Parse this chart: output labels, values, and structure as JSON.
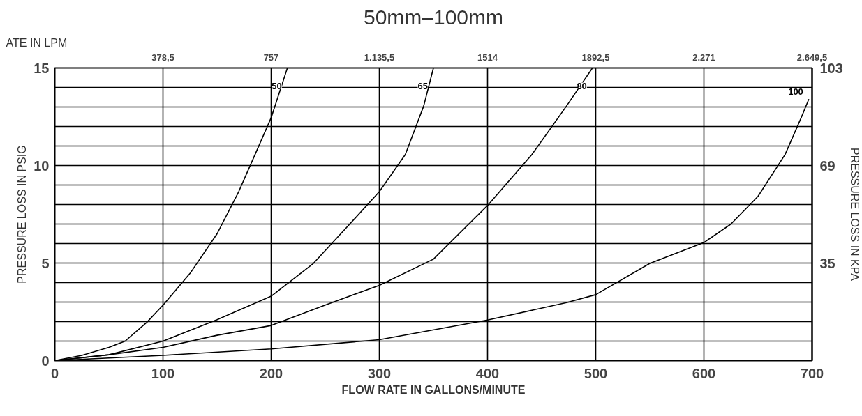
{
  "chart_data": {
    "type": "line",
    "title": "50mm–100mm",
    "xlabel": "FLOW RATE IN GALLONS/MINUTE",
    "ylabel": "PRESSURE LOSS IN PSIG",
    "y2label": "PRESSURE LOSS IN KPA",
    "x2label": "ATE IN LPM",
    "xlim": [
      0,
      700
    ],
    "xticks": [
      0,
      100,
      200,
      300,
      400,
      500,
      600,
      700
    ],
    "x2lim": [
      0,
      2649.5
    ],
    "x2ticks": [
      {
        "value": 378.5,
        "label": "378,5"
      },
      {
        "value": 757,
        "label": "757"
      },
      {
        "value": 1135.5,
        "label": "1.135,5"
      },
      {
        "value": 1514,
        "label": "1514"
      },
      {
        "value": 1892.5,
        "label": "1892,5"
      },
      {
        "value": 2271,
        "label": "2.271"
      },
      {
        "value": 2649.5,
        "label": "2.649,5"
      }
    ],
    "ylim": [
      0,
      15
    ],
    "yticks": [
      0,
      {
        "value": 1,
        "label": null
      },
      {
        "value": 2,
        "label": null
      },
      {
        "value": 3,
        "label": null
      },
      {
        "value": 4,
        "label": null
      },
      5,
      {
        "value": 6,
        "label": null
      },
      {
        "value": 7,
        "label": null
      },
      {
        "value": 8,
        "label": null
      },
      {
        "value": 9,
        "label": null
      },
      10,
      {
        "value": 11,
        "label": null
      },
      {
        "value": 12,
        "label": null
      },
      {
        "value": 13,
        "label": null
      },
      {
        "value": 14,
        "label": null
      },
      15
    ],
    "y2lim": [
      1,
      103
    ],
    "y2ticks": [
      35,
      69,
      103
    ],
    "grid": true,
    "marker": "none",
    "line_style": "solid",
    "series": [
      {
        "name": "50",
        "color": "#000000",
        "x": [
          0,
          25,
          50,
          65,
          85,
          100,
          125,
          150,
          170,
          185,
          200,
          215
        ],
        "values": [
          0,
          0.27,
          0.68,
          1.0,
          1.96,
          2.84,
          4.47,
          6.5,
          8.66,
          10.55,
          12.45,
          15
        ]
      },
      {
        "name": "65",
        "color": "#000000",
        "x": [
          0,
          50,
          100,
          150,
          200,
          239,
          271,
          300,
          324,
          341,
          350
        ],
        "values": [
          0,
          0.3,
          1.0,
          2.1,
          3.3,
          4.98,
          6.9,
          8.66,
          10.56,
          13.05,
          15
        ]
      },
      {
        "name": "80",
        "color": "#000000",
        "x": [
          0,
          50,
          100,
          150,
          200,
          250,
          300,
          350,
          400,
          441,
          473,
          497
        ],
        "values": [
          0,
          0.3,
          0.68,
          1.3,
          1.8,
          2.85,
          3.86,
          5.2,
          7.95,
          10.56,
          13.05,
          15
        ]
      },
      {
        "name": "100",
        "color": "#000000",
        "x": [
          0,
          100,
          200,
          300,
          400,
          473,
          500,
          550,
          600,
          625,
          650,
          675,
          690,
          697
        ],
        "values": [
          0,
          0.27,
          0.6,
          1.07,
          2.08,
          2.97,
          3.38,
          4.98,
          6.05,
          7.0,
          8.42,
          10.56,
          12.46,
          13.4
        ]
      }
    ]
  }
}
